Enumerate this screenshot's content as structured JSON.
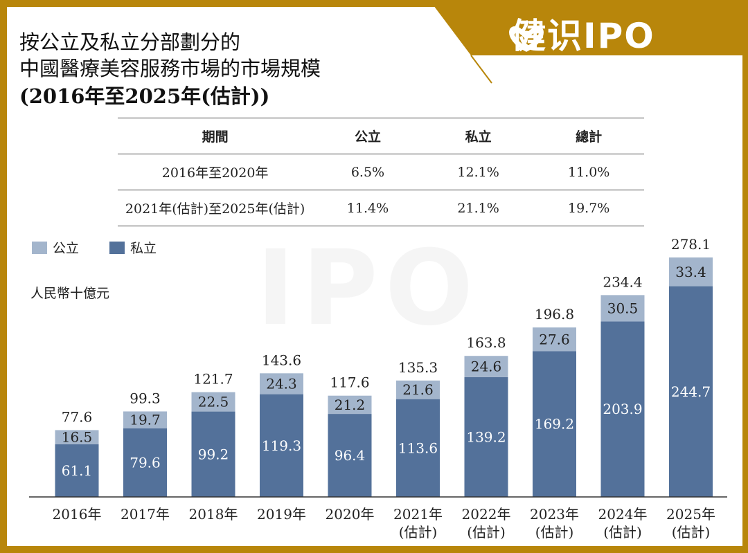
{
  "logo": {
    "text": "健识IPO"
  },
  "title": {
    "line1": "按公立及私立分部劃分的",
    "line2": "中國醫療美容服務市場的市場規模",
    "line3": "(2016年至2025年(估計))"
  },
  "cagr_table": {
    "headers": [
      "期間",
      "公立",
      "私立",
      "總計"
    ],
    "rows": [
      [
        "2016年至2020年",
        "6.5%",
        "12.1%",
        "11.0%"
      ],
      [
        "2021年(估計)至2025年(估計)",
        "11.4%",
        "21.1%",
        "19.7%"
      ]
    ]
  },
  "colors": {
    "public": "#a3b5cc",
    "private": "#53719a",
    "frame": "#b8860b"
  },
  "chart_data": {
    "type": "bar",
    "stacked": true,
    "unit_label": "人民幣十億元",
    "categories": [
      "2016年",
      "2017年",
      "2018年",
      "2019年",
      "2020年",
      "2021年",
      "2022年",
      "2023年",
      "2024年",
      "2025年"
    ],
    "category_sublabels": [
      "",
      "",
      "",
      "",
      "",
      "(估計)",
      "(估計)",
      "(估計)",
      "(估計)",
      "(估計)"
    ],
    "series": [
      {
        "name": "私立",
        "values": [
          61.1,
          79.6,
          99.2,
          119.3,
          96.4,
          113.6,
          139.2,
          169.2,
          203.9,
          244.7
        ]
      },
      {
        "name": "公立",
        "values": [
          16.5,
          19.7,
          22.5,
          24.3,
          21.2,
          21.6,
          24.6,
          27.6,
          30.5,
          33.4
        ]
      }
    ],
    "totals": [
      "77.6",
      "99.3",
      "121.7",
      "143.6",
      "117.6",
      "135.3",
      "163.8",
      "196.8",
      "234.4",
      "278.1"
    ],
    "legend": [
      "公立",
      "私立"
    ],
    "legend_position": "top-left",
    "ylim": [
      0,
      280
    ],
    "grid": false
  }
}
